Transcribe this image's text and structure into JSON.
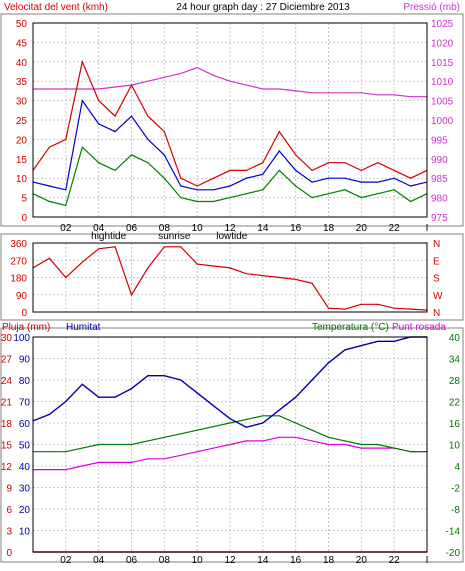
{
  "title": "24 hour graph day : 27 Diciembre 2013",
  "colors": {
    "wind": "#d40000",
    "gust": "#0000cc",
    "windDark": "#008000",
    "pressure": "#cc33cc",
    "humidity": "#0000aa",
    "temperature": "#007700",
    "dewpoint": "#dd00dd",
    "rain": "#cc0000",
    "grid": "#c8c8c8",
    "text": "#000000"
  },
  "x_ticks": [
    "02",
    "04",
    "06",
    "08",
    "10",
    "12",
    "14",
    "16",
    "18",
    "20",
    "22",
    "I"
  ],
  "tide_labels": [
    {
      "hour": 4,
      "text": "hightide"
    },
    {
      "hour": 8,
      "text": "sunrise"
    },
    {
      "hour": 11.5,
      "text": "lowtide"
    }
  ],
  "chart_data": [
    {
      "type": "line",
      "name": "wind-chart",
      "left_label": "Velocitat del vent (kmh)",
      "right_label": "Pressió (mb)",
      "left_ticks": [
        "0",
        "5",
        "10",
        "15",
        "20",
        "25",
        "30",
        "35",
        "40",
        "45",
        "50"
      ],
      "right_ticks": [
        "975",
        "980",
        "985",
        "990",
        "995",
        "1000",
        "1005",
        "1010",
        "1015",
        "1020",
        "1025"
      ],
      "ylim": [
        0,
        50
      ],
      "y2lim": [
        975,
        1025
      ],
      "x": [
        0,
        1,
        2,
        3,
        4,
        5,
        6,
        7,
        8,
        9,
        10,
        11,
        12,
        13,
        14,
        15,
        16,
        17,
        18,
        19,
        20,
        21,
        22,
        23,
        24
      ],
      "series": [
        {
          "key": "wind",
          "values": [
            12,
            18,
            20,
            40,
            30,
            26,
            34,
            26,
            22,
            10,
            8,
            10,
            12,
            12,
            14,
            22,
            16,
            12,
            14,
            14,
            12,
            14,
            12,
            10,
            12
          ]
        },
        {
          "key": "gust",
          "values": [
            9,
            8,
            7,
            30,
            24,
            22,
            26,
            20,
            16,
            8,
            7,
            7,
            8,
            10,
            11,
            17,
            12,
            9,
            10,
            10,
            9,
            9,
            10,
            8,
            9
          ]
        },
        {
          "key": "windDark",
          "values": [
            6,
            4,
            3,
            18,
            14,
            12,
            16,
            14,
            10,
            5,
            4,
            4,
            5,
            6,
            7,
            12,
            8,
            5,
            6,
            7,
            5,
            6,
            7,
            4,
            6
          ]
        },
        {
          "key": "pressure",
          "values": [
            1008,
            1008,
            1008,
            1008,
            1008,
            1008.5,
            1009,
            1010,
            1011,
            1012,
            1013.5,
            1011.5,
            1010,
            1009,
            1008,
            1008,
            1007.5,
            1007,
            1007,
            1007,
            1007,
            1006.5,
            1006.5,
            1006,
            1006
          ]
        }
      ]
    },
    {
      "type": "line",
      "name": "direction-chart",
      "left_ticks": [
        "0",
        "90",
        "180",
        "270",
        "360"
      ],
      "right_ticks": [
        "N",
        "E",
        "S",
        "W",
        "N"
      ],
      "ylim": [
        0,
        360
      ],
      "x": [
        0,
        1,
        2,
        3,
        4,
        5,
        6,
        7,
        8,
        9,
        10,
        11,
        12,
        13,
        14,
        15,
        16,
        17,
        18,
        19,
        20,
        21,
        22,
        23,
        24
      ],
      "series": [
        {
          "key": "wind",
          "values": [
            230,
            280,
            180,
            260,
            330,
            340,
            90,
            230,
            340,
            340,
            250,
            240,
            230,
            200,
            190,
            180,
            170,
            150,
            20,
            15,
            40,
            40,
            20,
            15,
            10
          ]
        }
      ]
    },
    {
      "type": "line",
      "name": "humidity-chart",
      "left_label": "Pluja (mm)",
      "center_label": "Humitat",
      "right_label": "Temperatura (°C)",
      "right_label2": "Punt rosada",
      "left_ticks": [
        "0",
        "3",
        "6",
        "9",
        "12",
        "15",
        "18",
        "21",
        "24",
        "27",
        "30"
      ],
      "humidity_ticks": [
        "10",
        "20",
        "30",
        "40",
        "50",
        "60",
        "70",
        "80",
        "90",
        "100"
      ],
      "right_ticks": [
        "-20",
        "-14",
        "-8",
        "-2",
        "4",
        "10",
        "16",
        "22",
        "28",
        "34",
        "40"
      ],
      "ylim": [
        0,
        100
      ],
      "y2lim": [
        -20,
        40
      ],
      "x": [
        0,
        1,
        2,
        3,
        4,
        5,
        6,
        7,
        8,
        9,
        10,
        11,
        12,
        13,
        14,
        15,
        16,
        17,
        18,
        19,
        20,
        21,
        22,
        23,
        24
      ],
      "series": [
        {
          "key": "humidity",
          "values": [
            61,
            64,
            70,
            78,
            72,
            72,
            76,
            82,
            82,
            80,
            74,
            68,
            62,
            58,
            60,
            66,
            72,
            80,
            88,
            94,
            96,
            98,
            98,
            100,
            100
          ]
        },
        {
          "key": "temperature",
          "values": [
            8,
            8,
            8,
            9,
            10,
            10,
            10,
            11,
            12,
            13,
            14,
            15,
            16,
            17,
            18,
            18,
            16,
            14,
            12,
            11,
            10,
            10,
            9,
            8,
            8
          ]
        },
        {
          "key": "dewpoint",
          "values": [
            3,
            3,
            3,
            4,
            5,
            5,
            5,
            6,
            6,
            7,
            8,
            9,
            10,
            11,
            11,
            12,
            12,
            11,
            10,
            10,
            9,
            9,
            9,
            8,
            8
          ]
        },
        {
          "key": "rain",
          "values": [
            0,
            0,
            0,
            0,
            0,
            0,
            0,
            0,
            0,
            0,
            0,
            0,
            0,
            0,
            0,
            0,
            0,
            0,
            0,
            0,
            0,
            0,
            0,
            0,
            0
          ]
        }
      ]
    }
  ]
}
